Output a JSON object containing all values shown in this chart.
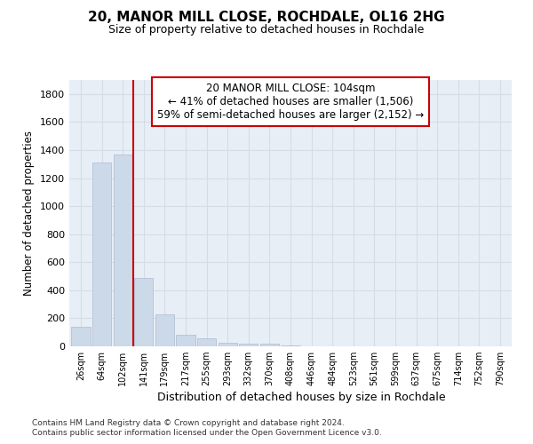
{
  "title": "20, MANOR MILL CLOSE, ROCHDALE, OL16 2HG",
  "subtitle": "Size of property relative to detached houses in Rochdale",
  "xlabel": "Distribution of detached houses by size in Rochdale",
  "ylabel": "Number of detached properties",
  "categories": [
    "26sqm",
    "64sqm",
    "102sqm",
    "141sqm",
    "179sqm",
    "217sqm",
    "255sqm",
    "293sqm",
    "332sqm",
    "370sqm",
    "408sqm",
    "446sqm",
    "484sqm",
    "523sqm",
    "561sqm",
    "599sqm",
    "637sqm",
    "675sqm",
    "714sqm",
    "752sqm",
    "790sqm"
  ],
  "values": [
    140,
    1310,
    1370,
    490,
    230,
    85,
    55,
    25,
    20,
    20,
    8,
    0,
    0,
    0,
    0,
    0,
    0,
    0,
    0,
    0,
    0
  ],
  "bar_color": "#ccd9e8",
  "bar_edge_color": "#aabbd0",
  "grid_color": "#d4dce8",
  "bg_color": "#e8eef5",
  "vline_x": 2.5,
  "vline_color": "#cc0000",
  "annotation_text": "20 MANOR MILL CLOSE: 104sqm\n← 41% of detached houses are smaller (1,506)\n59% of semi-detached houses are larger (2,152) →",
  "ann_bg": "#ffffff",
  "ann_edge": "#cc0000",
  "ylim_max": 1900,
  "yticks": [
    0,
    200,
    400,
    600,
    800,
    1000,
    1200,
    1400,
    1600,
    1800
  ],
  "footer1": "Contains HM Land Registry data © Crown copyright and database right 2024.",
  "footer2": "Contains public sector information licensed under the Open Government Licence v3.0."
}
